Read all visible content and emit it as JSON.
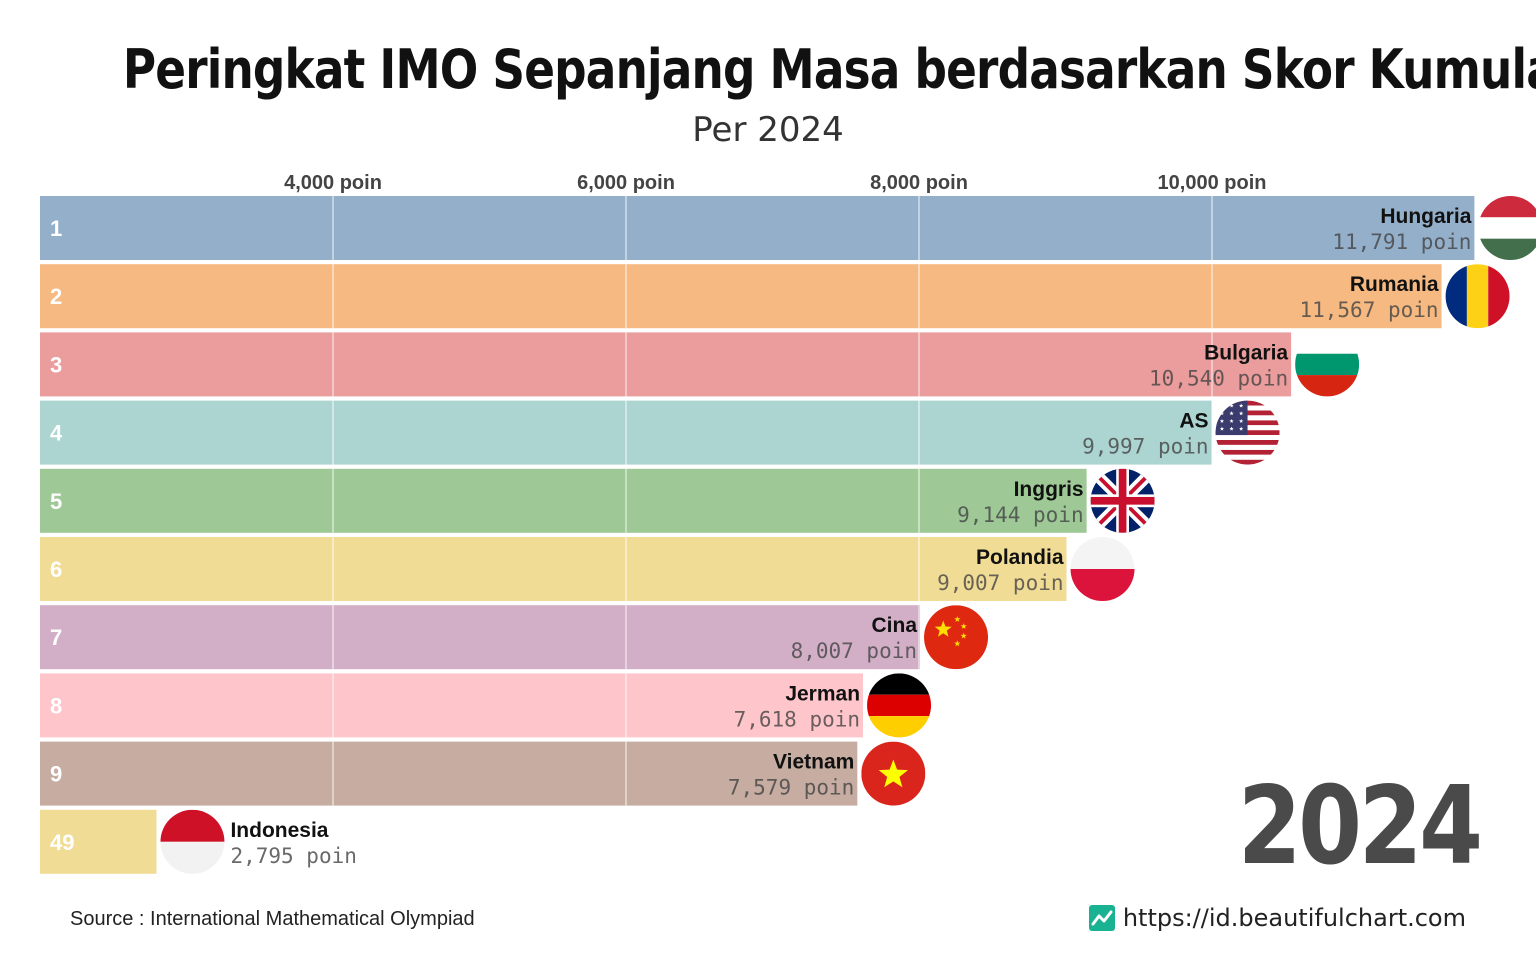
{
  "header": {
    "title": "Peringkat IMO Sepanjang Masa berdasarkan Skor Kumulatif",
    "subtitle": "Per 2024"
  },
  "year_label": "2024",
  "footer": {
    "source": "Source : International Mathematical Olympiad",
    "site": "https://id.beautifulchart.com",
    "brand_color": "#19b394"
  },
  "chart_data": {
    "type": "bar",
    "orientation": "horizontal",
    "title": "Peringkat IMO Sepanjang Masa berdasarkan Skor Kumulatif",
    "subtitle": "Per 2024",
    "xlim": [
      2000,
      12500
    ],
    "ticks": [
      4000,
      6000,
      8000,
      10000
    ],
    "tick_labels": [
      "4,000 poin",
      "6,000 poin",
      "8,000 poin",
      "10,000 poin"
    ],
    "unit": "poin",
    "bars": [
      {
        "rank": "1",
        "name": "Hungaria",
        "value": 11791,
        "value_label": "11,791 poin",
        "color": "#94afc9",
        "flag": "hungary-flag"
      },
      {
        "rank": "2",
        "name": "Rumania",
        "value": 11567,
        "value_label": "11,567 poin",
        "color": "#f5b981",
        "flag": "romania-flag"
      },
      {
        "rank": "3",
        "name": "Bulgaria",
        "value": 10540,
        "value_label": "10,540 poin",
        "color": "#eb9c9c",
        "flag": "bulgaria-flag"
      },
      {
        "rank": "4",
        "name": "AS",
        "value": 9997,
        "value_label": "9,997 poin",
        "color": "#acd5d1",
        "flag": "usa-flag"
      },
      {
        "rank": "5",
        "name": "Inggris",
        "value": 9144,
        "value_label": "9,144 poin",
        "color": "#9ec896",
        "flag": "uk-flag"
      },
      {
        "rank": "6",
        "name": "Polandia",
        "value": 9007,
        "value_label": "9,007 poin",
        "color": "#f1dc96",
        "flag": "poland-flag"
      },
      {
        "rank": "7",
        "name": "Cina",
        "value": 8007,
        "value_label": "8,007 poin",
        "color": "#d2afc7",
        "flag": "china-flag"
      },
      {
        "rank": "8",
        "name": "Jerman",
        "value": 7618,
        "value_label": "7,618 poin",
        "color": "#fec5cb",
        "flag": "germany-flag"
      },
      {
        "rank": "9",
        "name": "Vietnam",
        "value": 7579,
        "value_label": "7,579 poin",
        "color": "#c6aca1",
        "flag": "vietnam-flag"
      },
      {
        "rank": "49",
        "name": "Indonesia",
        "value": 2795,
        "value_label": "2,795 poin",
        "color": "#f1dc96",
        "flag": "indonesia-flag"
      }
    ]
  }
}
